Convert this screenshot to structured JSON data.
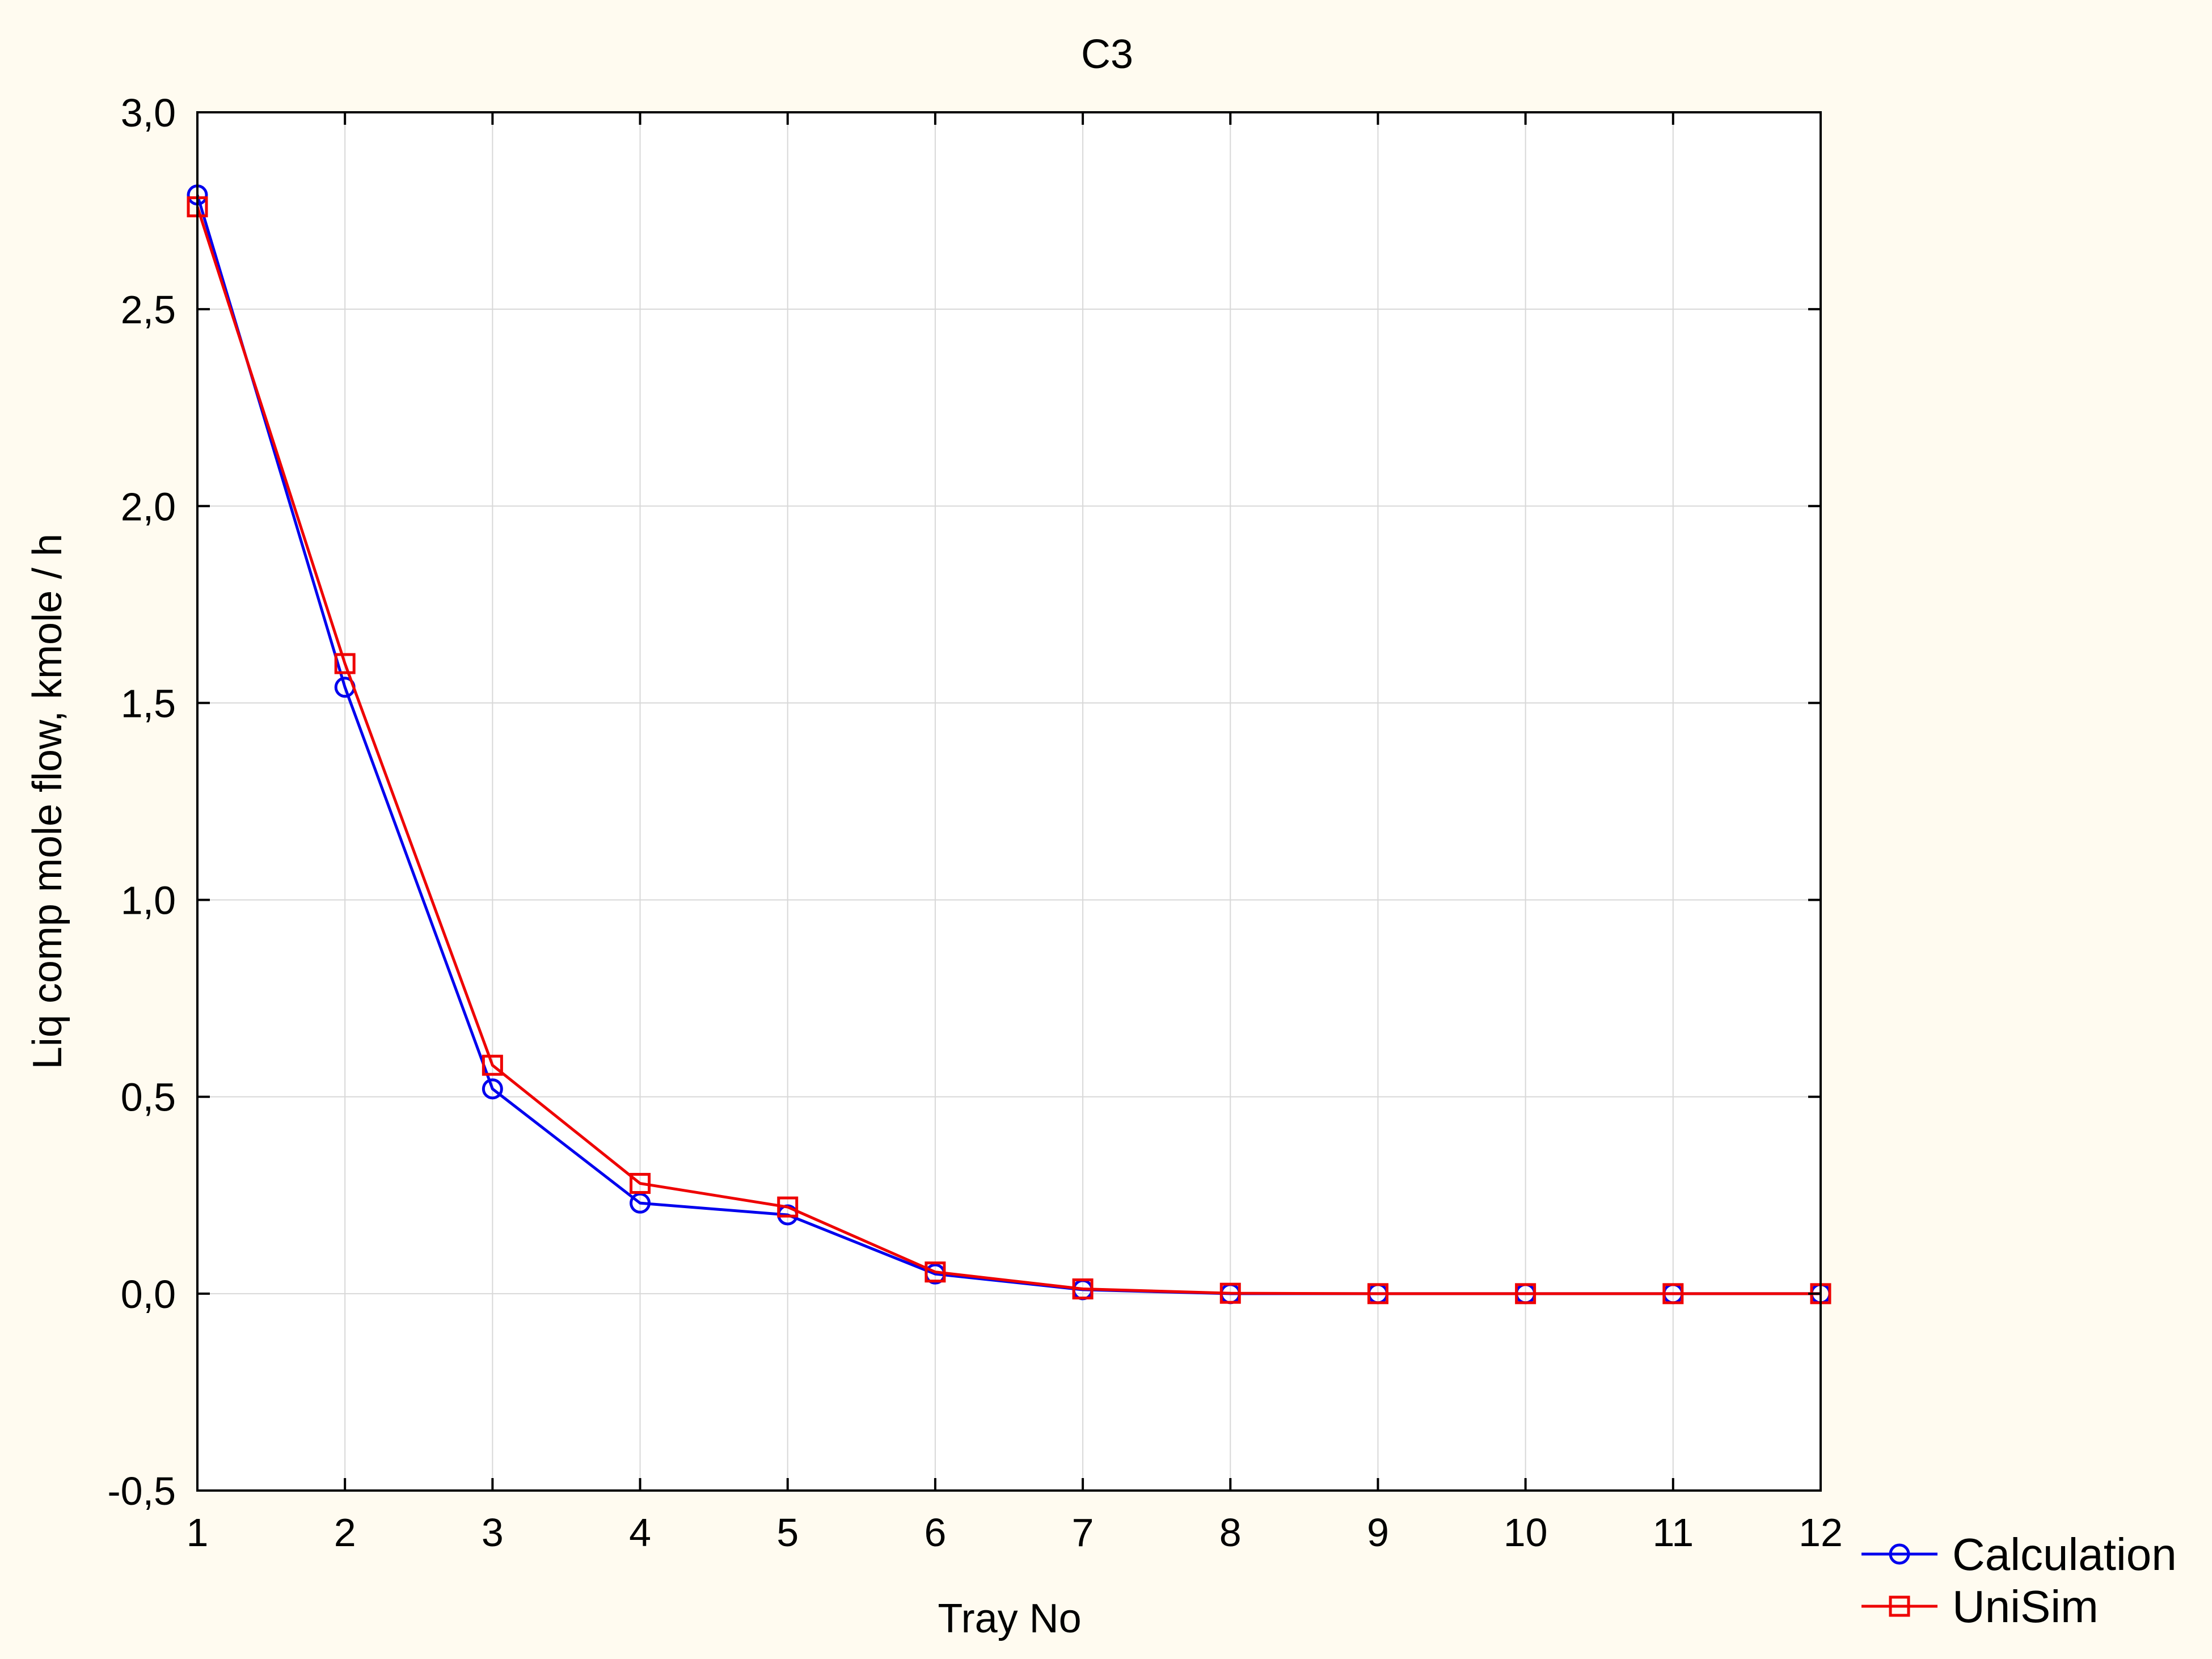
{
  "chart_data": {
    "type": "line",
    "title": "C3",
    "xlabel": "Tray No",
    "ylabel": "Liq comp mole flow, kmole / h",
    "x": [
      1,
      2,
      3,
      4,
      5,
      6,
      7,
      8,
      9,
      10,
      11,
      12
    ],
    "xlim": [
      1,
      12
    ],
    "ylim": [
      -0.5,
      3.0
    ],
    "xticks": [
      "1",
      "2",
      "3",
      "4",
      "5",
      "6",
      "7",
      "8",
      "9",
      "10",
      "11",
      "12"
    ],
    "yticks": [
      {
        "value": -0.5,
        "label": "-0,5"
      },
      {
        "value": 0.0,
        "label": "0,0"
      },
      {
        "value": 0.5,
        "label": "0,5"
      },
      {
        "value": 1.0,
        "label": "1,0"
      },
      {
        "value": 1.5,
        "label": "1,5"
      },
      {
        "value": 2.0,
        "label": "2,0"
      },
      {
        "value": 2.5,
        "label": "2,5"
      },
      {
        "value": 3.0,
        "label": "3,0"
      }
    ],
    "grid": true,
    "legend_position": "bottom-right",
    "series": [
      {
        "name": "Calculation",
        "color": "#0000ee",
        "marker": "circle",
        "values": [
          2.79,
          1.54,
          0.52,
          0.23,
          0.2,
          0.05,
          0.01,
          0.0,
          0.0,
          0.0,
          0.0,
          0.0
        ]
      },
      {
        "name": "UniSim",
        "color": "#ee0000",
        "marker": "square",
        "values": [
          2.76,
          1.6,
          0.58,
          0.28,
          0.22,
          0.055,
          0.012,
          0.001,
          0.0,
          0.0,
          0.0,
          0.0
        ]
      }
    ]
  }
}
